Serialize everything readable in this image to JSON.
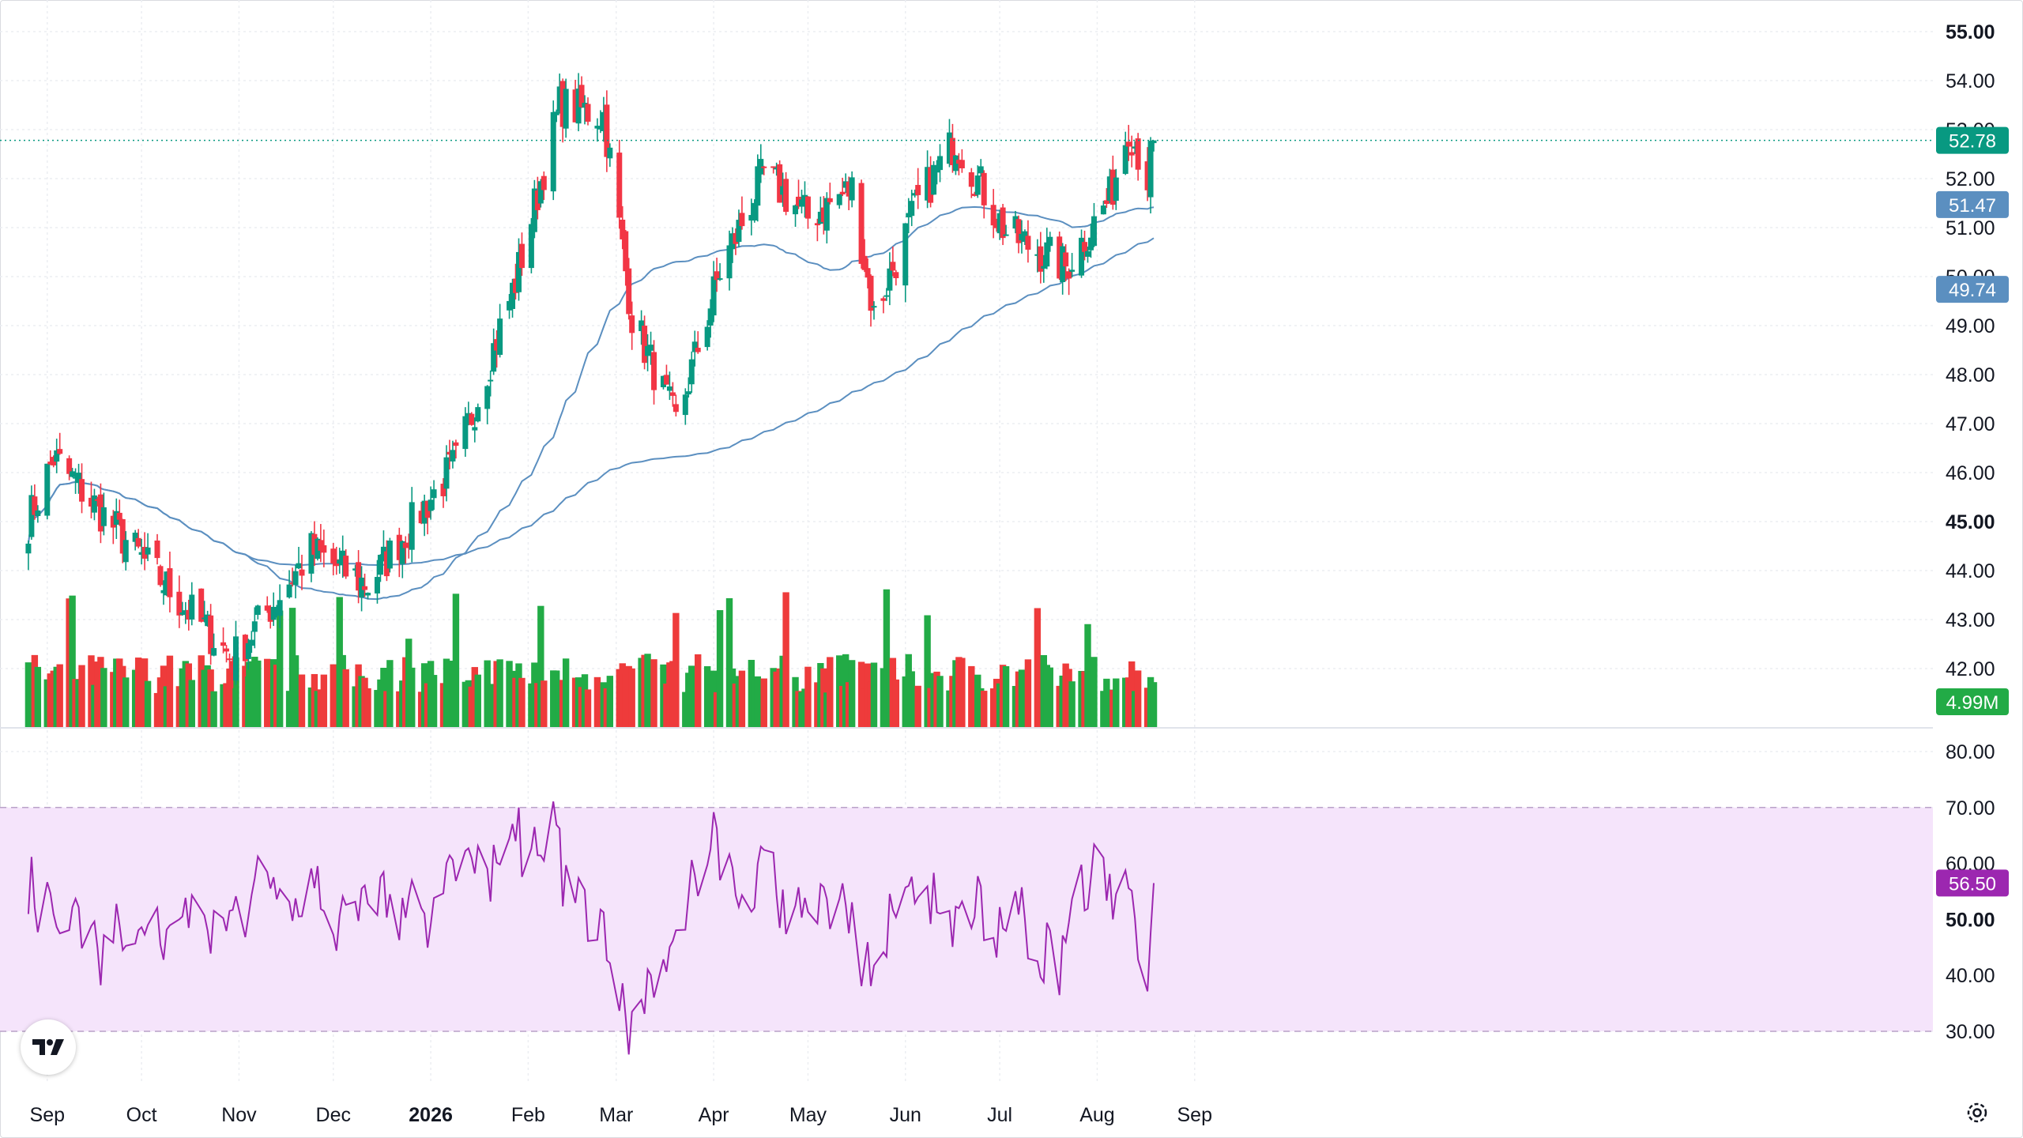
{
  "chart_data": [
    {
      "type": "candlestick",
      "title": "",
      "xlabel": "",
      "ylabel": "",
      "ylim": [
        41.0,
        55.0
      ],
      "price_ticks": [
        "55.00",
        "54.00",
        "53.00",
        "52.00",
        "51.00",
        "50.00",
        "49.00",
        "48.00",
        "47.00",
        "46.00",
        "45.00",
        "44.00",
        "43.00",
        "42.00"
      ],
      "price_ticks_bold": [
        "55.00",
        "45.00"
      ],
      "x_tick_labels": [
        "Sep",
        "Oct",
        "Nov",
        "Dec",
        "2026",
        "Feb",
        "Mar",
        "Apr",
        "May",
        "Jun",
        "Jul",
        "Aug",
        "Sep"
      ],
      "x_ticks_bold": [
        "2026"
      ],
      "last_price": {
        "value": 52.78,
        "label": "52.78",
        "color": "#089981"
      },
      "ma_fast": {
        "value": 51.47,
        "label": "51.47",
        "color": "#5b8fc0"
      },
      "ma_slow": {
        "value": 49.74,
        "label": "49.74",
        "color": "#5b8fc0"
      },
      "volume_last": {
        "label": "4.99M",
        "color": "#22ab46"
      },
      "colors": {
        "up": "#089981",
        "down": "#f23645",
        "vol_up": "#22ab46",
        "vol_down": "#ee3b3b"
      },
      "key_points": [
        {
          "x": "2025-08-26",
          "close": 45.0
        },
        {
          "x": "2025-09-03",
          "close": 46.3
        },
        {
          "x": "2025-10-03",
          "close": 44.1
        },
        {
          "x": "2025-10-30",
          "close": 42.2
        },
        {
          "x": "2025-11-24",
          "close": 44.4
        },
        {
          "x": "2025-12-12",
          "close": 43.7
        },
        {
          "x": "2026-01-09",
          "close": 46.2
        },
        {
          "x": "2026-01-28",
          "close": 49.9
        },
        {
          "x": "2026-02-11",
          "close": 53.5
        },
        {
          "x": "2026-02-25",
          "close": 53.3
        },
        {
          "x": "2026-03-06",
          "close": 49.2
        },
        {
          "x": "2026-03-20",
          "close": 47.0
        },
        {
          "x": "2026-04-03",
          "close": 50.1
        },
        {
          "x": "2026-04-17",
          "close": 52.1
        },
        {
          "x": "2026-05-01",
          "close": 51.2
        },
        {
          "x": "2026-05-15",
          "close": 51.8
        },
        {
          "x": "2026-05-22",
          "close": 49.2
        },
        {
          "x": "2026-06-05",
          "close": 51.5
        },
        {
          "x": "2026-06-17",
          "close": 52.8
        },
        {
          "x": "2026-07-03",
          "close": 50.9
        },
        {
          "x": "2026-07-22",
          "close": 50.2
        },
        {
          "x": "2026-08-05",
          "close": 51.6
        },
        {
          "x": "2026-08-11",
          "close": 53.1
        },
        {
          "x": "2026-08-17",
          "close": 52.0
        },
        {
          "x": "2026-08-19",
          "close": 52.78
        }
      ]
    },
    {
      "type": "line",
      "title": "",
      "ylim": [
        22,
        82
      ],
      "ticks": [
        "80.00",
        "70.00",
        "60.00",
        "50.00",
        "40.00",
        "30.00"
      ],
      "ticks_bold": [
        "50.00"
      ],
      "band": [
        30,
        70
      ],
      "current": {
        "value": 56.5,
        "label": "56.50",
        "color": "#9c27b0"
      },
      "line_color": "#9c27b0",
      "band_color": "#f5e4fb"
    }
  ]
}
